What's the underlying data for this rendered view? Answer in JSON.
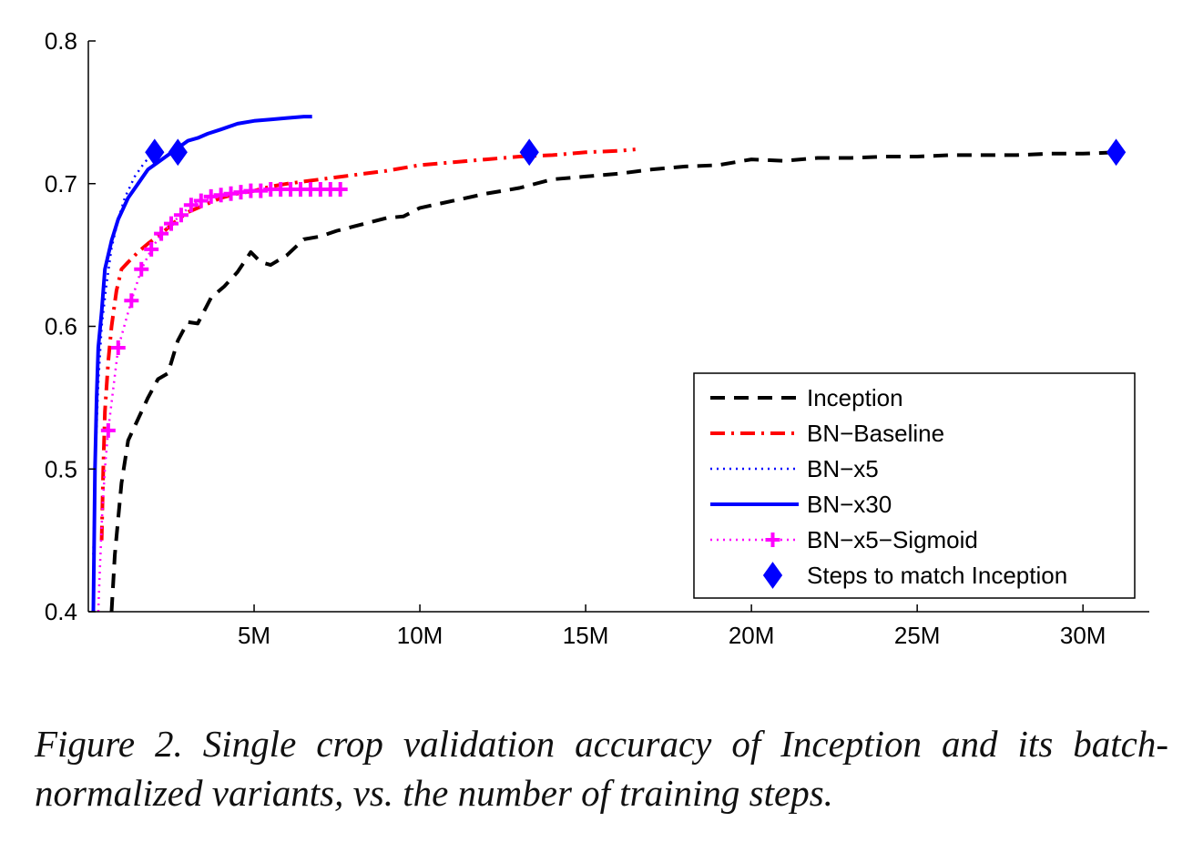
{
  "chart_data": {
    "type": "line",
    "title": "",
    "xlabel": "",
    "ylabel": "",
    "xlim": [
      0,
      32000000
    ],
    "ylim": [
      0.4,
      0.8
    ],
    "x_ticks": [
      {
        "value": 5000000,
        "label": "5M"
      },
      {
        "value": 10000000,
        "label": "10M"
      },
      {
        "value": 15000000,
        "label": "15M"
      },
      {
        "value": 20000000,
        "label": "20M"
      },
      {
        "value": 25000000,
        "label": "25M"
      },
      {
        "value": 30000000,
        "label": "30M"
      }
    ],
    "y_ticks": [
      {
        "value": 0.4,
        "label": "0.4"
      },
      {
        "value": 0.5,
        "label": "0.5"
      },
      {
        "value": 0.6,
        "label": "0.6"
      },
      {
        "value": 0.7,
        "label": "0.7"
      },
      {
        "value": 0.8,
        "label": "0.8"
      }
    ],
    "legend_position": "bottom-right",
    "series": [
      {
        "name": "Inception",
        "color": "#000000",
        "style": "dashed",
        "marker": "none",
        "x": [
          700000,
          800000,
          1000000,
          1200000,
          1500000,
          1800000,
          2100000,
          2400000,
          2700000,
          3000000,
          3300000,
          3700000,
          4100000,
          4500000,
          4900000,
          5200000,
          5500000,
          6000000,
          6500000,
          7000000,
          7500000,
          8000000,
          8500000,
          9000000,
          9500000,
          10000000,
          11000000,
          12000000,
          13000000,
          14000000,
          15000000,
          16000000,
          17000000,
          18000000,
          19000000,
          20000000,
          21000000,
          22000000,
          23000000,
          24000000,
          25000000,
          26000000,
          27000000,
          28000000,
          29000000,
          30000000,
          31000000
        ],
        "values": [
          0.4,
          0.44,
          0.49,
          0.52,
          0.535,
          0.55,
          0.563,
          0.567,
          0.59,
          0.603,
          0.602,
          0.62,
          0.628,
          0.638,
          0.652,
          0.645,
          0.643,
          0.65,
          0.661,
          0.663,
          0.667,
          0.67,
          0.673,
          0.676,
          0.677,
          0.683,
          0.688,
          0.693,
          0.697,
          0.703,
          0.705,
          0.707,
          0.71,
          0.712,
          0.713,
          0.717,
          0.716,
          0.718,
          0.718,
          0.719,
          0.719,
          0.72,
          0.72,
          0.72,
          0.721,
          0.721,
          0.722
        ]
      },
      {
        "name": "BN−Baseline",
        "color": "#ff0000",
        "style": "dashdot",
        "marker": "none",
        "x": [
          400000,
          450000,
          500000,
          600000,
          700000,
          850000,
          1000000,
          1200000,
          1500000,
          1800000,
          2200000,
          2600000,
          3000000,
          3500000,
          4000000,
          4500000,
          5000000,
          5500000,
          6000000,
          7000000,
          8000000,
          9000000,
          10000000,
          11000000,
          12000000,
          13000000,
          14000000,
          15000000,
          16000000,
          16500000
        ],
        "values": [
          0.45,
          0.5,
          0.54,
          0.575,
          0.6,
          0.625,
          0.64,
          0.645,
          0.652,
          0.658,
          0.665,
          0.673,
          0.68,
          0.685,
          0.69,
          0.693,
          0.695,
          0.698,
          0.7,
          0.703,
          0.706,
          0.709,
          0.713,
          0.715,
          0.717,
          0.719,
          0.72,
          0.722,
          0.723,
          0.724
        ]
      },
      {
        "name": "BN−x5",
        "color": "#0000ff",
        "style": "dotted",
        "marker": "none",
        "x": [
          150000,
          200000,
          300000,
          400000,
          550000,
          700000,
          900000,
          1100000,
          1400000,
          1700000,
          2000000
        ],
        "values": [
          0.44,
          0.5,
          0.56,
          0.6,
          0.63,
          0.655,
          0.675,
          0.69,
          0.705,
          0.715,
          0.722
        ]
      },
      {
        "name": "BN−x30",
        "color": "#0000ff",
        "style": "solid",
        "marker": "none",
        "x": [
          150000,
          200000,
          250000,
          300000,
          400000,
          500000,
          700000,
          900000,
          1200000,
          1500000,
          1800000,
          2100000,
          2400000,
          2700000,
          3000000,
          3300000,
          3600000,
          4000000,
          4500000,
          5000000,
          5500000,
          6000000,
          6500000,
          6750000
        ],
        "values": [
          0.4,
          0.5,
          0.55,
          0.585,
          0.61,
          0.64,
          0.66,
          0.675,
          0.69,
          0.7,
          0.71,
          0.715,
          0.72,
          0.725,
          0.73,
          0.732,
          0.735,
          0.738,
          0.742,
          0.744,
          0.745,
          0.746,
          0.747,
          0.747
        ]
      },
      {
        "name": "BN−x5−Sigmoid",
        "color": "#ff00ff",
        "style": "dotted",
        "marker": "plus",
        "x": [
          300000,
          350000,
          420000,
          500000,
          600000,
          900000,
          1300000,
          1600000,
          1900000,
          2200000,
          2500000,
          2800000,
          3100000,
          3400000,
          3700000,
          4000000,
          4300000,
          4600000,
          4900000,
          5200000,
          5500000,
          5800000,
          6100000,
          6400000,
          6700000,
          7000000,
          7300000,
          7600000
        ],
        "values": [
          0.4,
          0.43,
          0.47,
          0.5,
          0.527,
          0.585,
          0.618,
          0.64,
          0.654,
          0.665,
          0.672,
          0.678,
          0.685,
          0.688,
          0.691,
          0.692,
          0.693,
          0.694,
          0.695,
          0.695,
          0.696,
          0.696,
          0.696,
          0.696,
          0.696,
          0.696,
          0.696,
          0.696
        ]
      },
      {
        "name": "Steps to match Inception",
        "color": "#0000ff",
        "style": "none",
        "marker": "diamond",
        "x": [
          2000000,
          2700000,
          13300000,
          31000000
        ],
        "values": [
          0.722,
          0.722,
          0.722,
          0.722
        ]
      }
    ]
  },
  "caption": "Figure 2. Single crop validation accuracy of Inception and its batch-normalized variants, vs. the number of training steps."
}
